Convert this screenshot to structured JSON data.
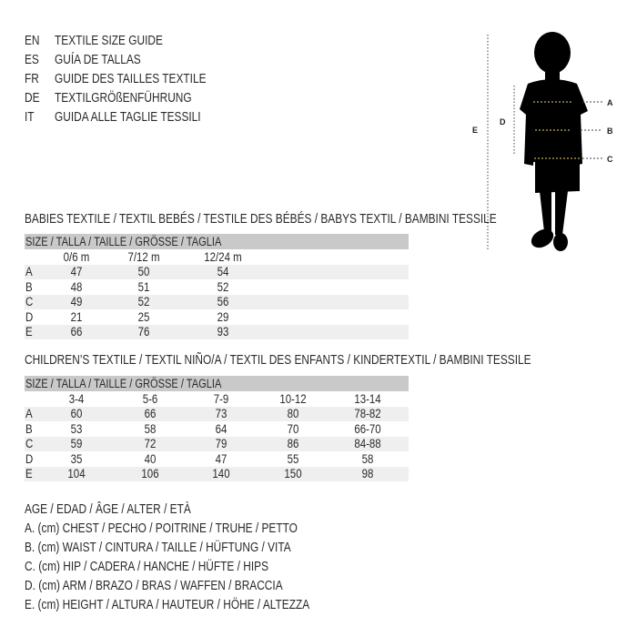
{
  "languages": [
    {
      "code": "EN",
      "title": "TEXTILE SIZE GUIDE"
    },
    {
      "code": "ES",
      "title": "GUÍA DE TALLAS"
    },
    {
      "code": "FR",
      "title": "GUIDE DES TAILLES TEXTILE"
    },
    {
      "code": "DE",
      "title": "TEXTILGRÖßENFÜHRUNG"
    },
    {
      "code": "IT",
      "title": "GUIDA ALLE TAGLIE TESSILI"
    }
  ],
  "figure": {
    "labels": {
      "a": "A",
      "b": "B",
      "c": "C",
      "d": "D",
      "e": "E"
    }
  },
  "babies": {
    "title": "BABIES TEXTILE / TEXTIL BEBÉS / TESTILE DES BÉBÉS / BABYS TEXTIL / BAMBINI TESSILE",
    "header": "SIZE / TALLA / TAILLE / GRÖSSE / TAGLIA",
    "columns": [
      "0/6 m",
      "7/12 m",
      "12/24 m"
    ],
    "rows": [
      {
        "label": "A",
        "values": [
          "47",
          "50",
          "54"
        ]
      },
      {
        "label": "B",
        "values": [
          "48",
          "51",
          "52"
        ]
      },
      {
        "label": "C",
        "values": [
          "49",
          "52",
          "56"
        ]
      },
      {
        "label": "D",
        "values": [
          "21",
          "25",
          "29"
        ]
      },
      {
        "label": "E",
        "values": [
          "66",
          "76",
          "93"
        ]
      }
    ]
  },
  "children": {
    "title": "CHILDREN’S TEXTILE / TEXTIL NIÑO/A / TEXTIL DES ENFANTS / KINDERTEXTIL / BAMBINI TESSILE",
    "header": "SIZE / TALLA / TAILLE / GRÖSSE / TAGLIA",
    "columns": [
      "3-4",
      "5-6",
      "7-9",
      "10-12",
      "13-14"
    ],
    "rows": [
      {
        "label": "A",
        "values": [
          "60",
          "66",
          "73",
          "80",
          "78-82"
        ]
      },
      {
        "label": "B",
        "values": [
          "53",
          "58",
          "64",
          "70",
          "66-70"
        ]
      },
      {
        "label": "C",
        "values": [
          "59",
          "72",
          "79",
          "86",
          "84-88"
        ]
      },
      {
        "label": "D",
        "values": [
          "35",
          "40",
          "47",
          "55",
          "58"
        ]
      },
      {
        "label": "E",
        "values": [
          "104",
          "106",
          "140",
          "150",
          "98"
        ]
      }
    ]
  },
  "legend": [
    "AGE / EDAD / ÂGE / ALTER / ETÀ",
    "A. (cm) CHEST / PECHO / POITRINE / TRUHE / PETTO",
    "B. (cm) WAIST / CINTURA / TAILLE / HÜFTUNG / VITA",
    "C. (cm) HIP / CADERA / HANCHE / HÜFTE / HIPS",
    "D. (cm) ARM / BRAZO / BRAS / WAFFEN / BRACCIA",
    "E. (cm) HEIGHT / ALTURA / HAUTEUR / HÖHE / ALTEZZA"
  ]
}
